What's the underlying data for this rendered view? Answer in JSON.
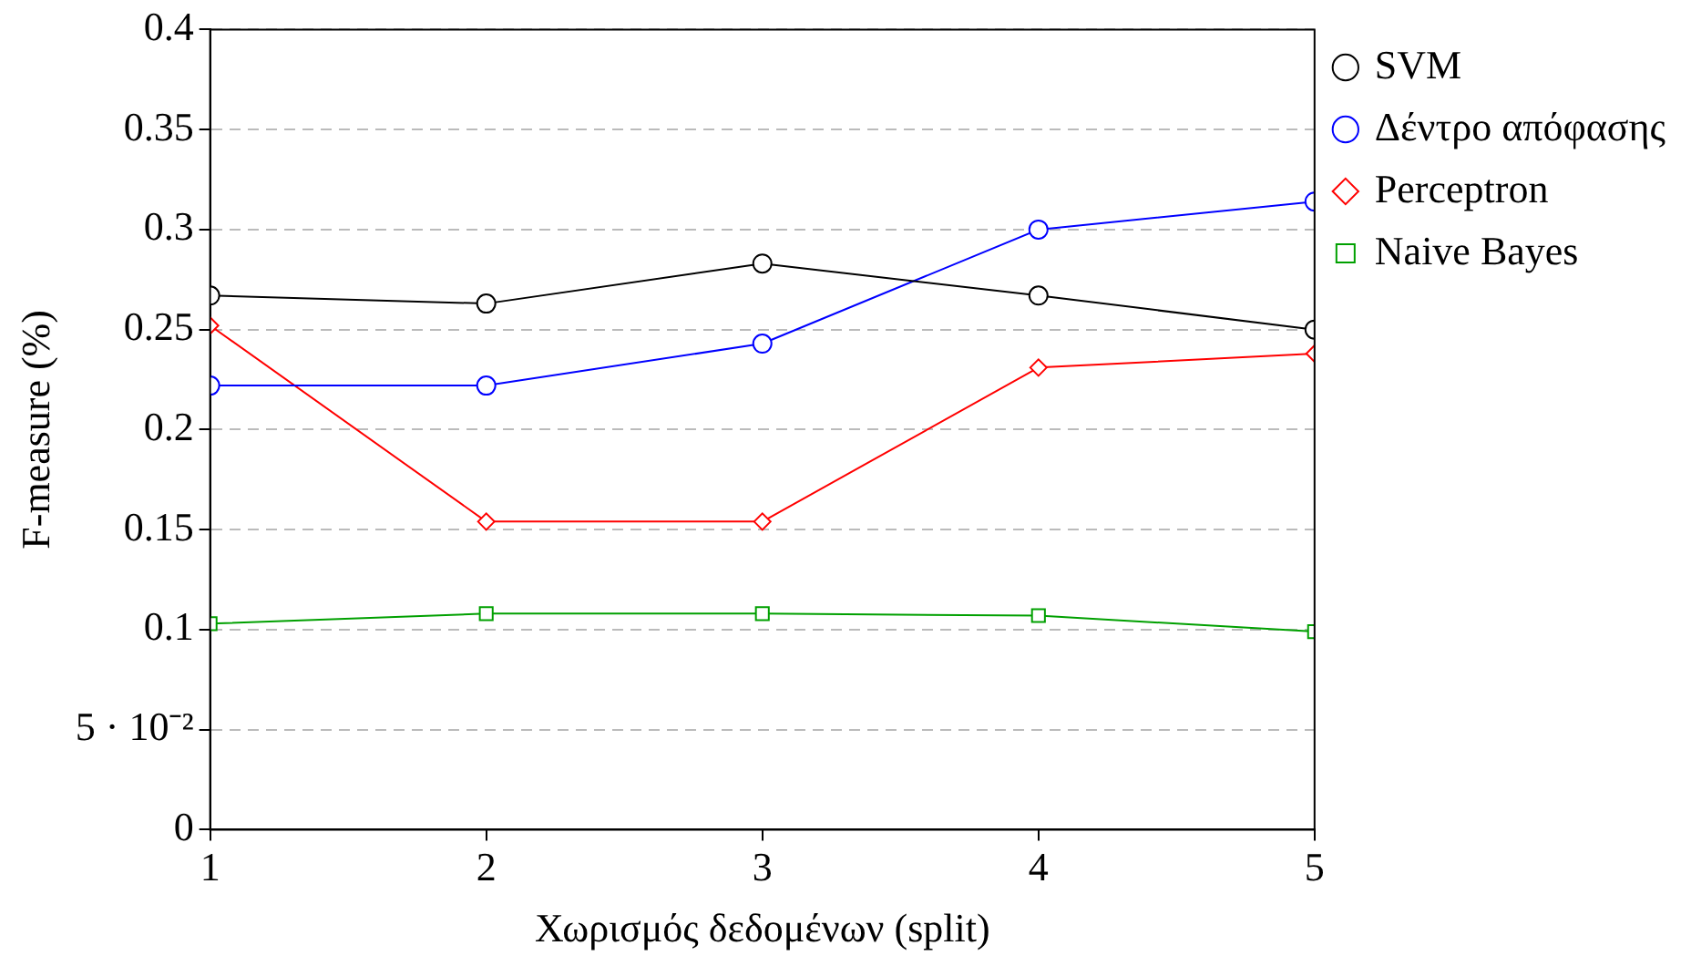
{
  "chart_data": {
    "type": "line",
    "xlabel": "Χωρισμός δεδομένων (split)",
    "ylabel": "F-measure (%)",
    "x": [
      1,
      2,
      3,
      4,
      5
    ],
    "xlim": [
      1,
      5
    ],
    "xticks": [
      1,
      2,
      3,
      4,
      5
    ],
    "ylim": [
      0,
      0.4
    ],
    "yticks": [
      0,
      {
        "value": 0.05,
        "label": "5 · 10⁻²"
      },
      0.1,
      0.15,
      0.2,
      0.25,
      0.3,
      0.35,
      0.4
    ],
    "grid": "y",
    "legend": "top right",
    "series": [
      {
        "name": "SVM",
        "color": "#000000",
        "marker": "circle",
        "values": [
          0.267,
          0.263,
          0.283,
          0.267,
          0.25
        ]
      },
      {
        "name": "Δέντρο απόφασης",
        "color": "#0000ff",
        "marker": "circle",
        "values": [
          0.222,
          0.222,
          0.243,
          0.3,
          0.314
        ]
      },
      {
        "name": "Perceptron",
        "color": "#ff0000",
        "marker": "diamond",
        "values": [
          0.252,
          0.154,
          0.154,
          0.231,
          0.238
        ]
      },
      {
        "name": "Naive Bayes",
        "color": "#00a000",
        "marker": "square",
        "values": [
          0.103,
          0.108,
          0.108,
          0.107,
          0.099
        ]
      }
    ]
  }
}
